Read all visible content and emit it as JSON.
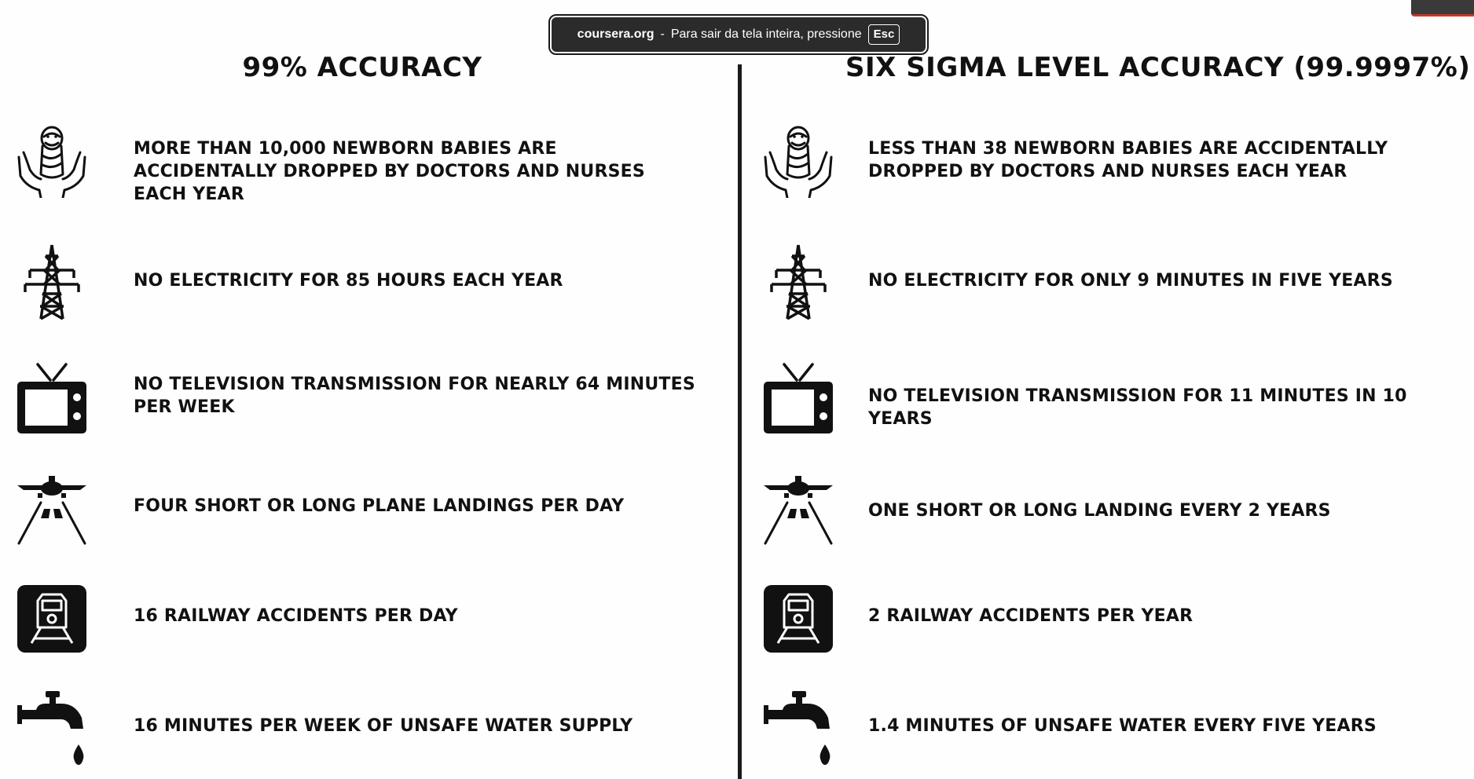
{
  "fullscreen_banner": {
    "site": "coursera.org",
    "separator": "-",
    "message": "Para sair da tela inteira, pressione",
    "key": "Esc"
  },
  "left_column": {
    "title": "99% ACCURACY",
    "rows": [
      {
        "icon": "baby-in-hands-icon",
        "text": "MORE THAN 10,000 NEWBORN BABIES ARE ACCIDENTALLY DROPPED BY DOCTORS AND NURSES EACH YEAR"
      },
      {
        "icon": "power-tower-icon",
        "text": "NO ELECTRICITY FOR 85 HOURS EACH YEAR"
      },
      {
        "icon": "television-icon",
        "text": "NO TELEVISION TRANSMISSION FOR NEARLY 64 MINUTES PER WEEK"
      },
      {
        "icon": "plane-landing-icon",
        "text": "FOUR SHORT OR LONG PLANE LANDINGS PER DAY"
      },
      {
        "icon": "train-icon",
        "text": "16 RAILWAY ACCIDENTS PER DAY"
      },
      {
        "icon": "water-tap-icon",
        "text": "16 MINUTES PER  WEEK OF UNSAFE WATER SUPPLY"
      }
    ]
  },
  "right_column": {
    "title": "SIX SIGMA LEVEL ACCURACY (99.9997%)",
    "rows": [
      {
        "icon": "baby-in-hands-icon",
        "text": "LESS THAN 38 NEWBORN BABIES ARE ACCIDENTALLY DROPPED BY DOCTORS AND NURSES EACH YEAR"
      },
      {
        "icon": "power-tower-icon",
        "text": "NO ELECTRICITY FOR ONLY 9 MINUTES IN FIVE YEARS"
      },
      {
        "icon": "television-icon",
        "text": "NO TELEVISION TRANSMISSION FOR 11 MINUTES IN 10 YEARS"
      },
      {
        "icon": "plane-landing-icon",
        "text": "ONE SHORT OR LONG LANDING EVERY 2 YEARS"
      },
      {
        "icon": "train-icon",
        "text": "2 RAILWAY ACCIDENTS PER YEAR"
      },
      {
        "icon": "water-tap-icon",
        "text": "1.4 MINUTES OF UNSAFE WATER EVERY FIVE YEARS"
      }
    ]
  },
  "colors": {
    "ink": "#111111",
    "banner_bg": "#2b2b2b",
    "banner_text": "#ffffff"
  }
}
